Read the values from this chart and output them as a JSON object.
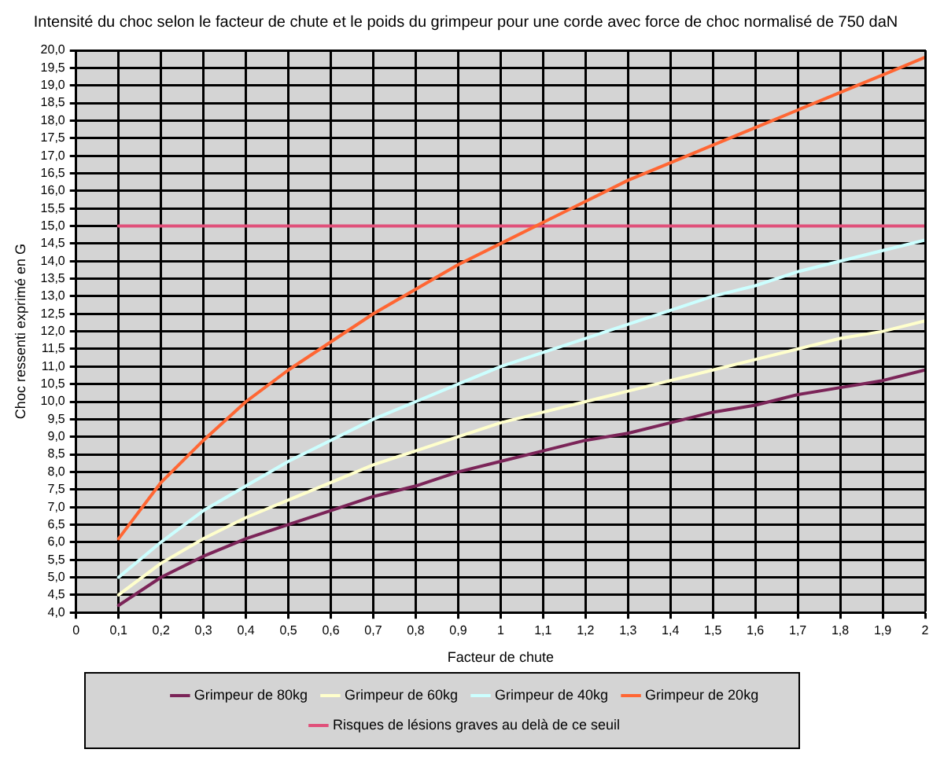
{
  "chart_data": {
    "type": "line",
    "title": "Intensité du choc selon le facteur de chute et le poids du grimpeur pour une corde avec force de choc normalisé de 750 daN",
    "xlabel": "Facteur de chute",
    "ylabel": "Choc ressenti exprimé en G",
    "x": [
      0.1,
      0.2,
      0.3,
      0.4,
      0.5,
      0.6,
      0.7,
      0.8,
      0.9,
      1.0,
      1.1,
      1.2,
      1.3,
      1.4,
      1.5,
      1.6,
      1.7,
      1.8,
      1.9,
      2.0
    ],
    "series": [
      {
        "name": "Grimpeur de 80kg",
        "color": "#7b2458",
        "values": [
          4.2,
          5.0,
          5.6,
          6.1,
          6.5,
          6.9,
          7.3,
          7.6,
          8.0,
          8.3,
          8.6,
          8.9,
          9.1,
          9.4,
          9.7,
          9.9,
          10.2,
          10.4,
          10.6,
          10.9
        ]
      },
      {
        "name": "Grimpeur de 60kg",
        "color": "#ffffcc",
        "values": [
          4.5,
          5.4,
          6.1,
          6.7,
          7.2,
          7.7,
          8.2,
          8.6,
          9.0,
          9.4,
          9.7,
          10.0,
          10.3,
          10.6,
          10.9,
          11.2,
          11.5,
          11.8,
          12.0,
          12.3
        ]
      },
      {
        "name": "Grimpeur de 40kg",
        "color": "#ccffff",
        "values": [
          5.0,
          6.0,
          6.9,
          7.6,
          8.3,
          8.9,
          9.5,
          10.0,
          10.5,
          11.0,
          11.4,
          11.8,
          12.2,
          12.6,
          13.0,
          13.3,
          13.7,
          14.0,
          14.3,
          14.6
        ]
      },
      {
        "name": "Grimpeur de 20kg",
        "color": "#ff6633",
        "values": [
          6.1,
          7.7,
          8.9,
          10.0,
          10.9,
          11.7,
          12.5,
          13.2,
          13.9,
          14.5,
          15.1,
          15.7,
          16.3,
          16.8,
          17.3,
          17.8,
          18.3,
          18.8,
          19.3,
          19.8
        ]
      },
      {
        "name": "Risques de lésions graves au delà de ce seuil",
        "color": "#e0507a",
        "values": [
          15,
          15,
          15,
          15,
          15,
          15,
          15,
          15,
          15,
          15,
          15,
          15,
          15,
          15,
          15,
          15,
          15,
          15,
          15,
          15
        ]
      }
    ],
    "xlim": [
      0,
      2
    ],
    "xticks": [
      0,
      {
        "value": 0.1,
        "label": "0,1"
      },
      {
        "value": 0.2,
        "label": "0,2"
      },
      {
        "value": 0.3,
        "label": "0,3"
      },
      {
        "value": 0.4,
        "label": "0,4"
      },
      {
        "value": 0.5,
        "label": "0,5"
      },
      {
        "value": 0.6,
        "label": "0,6"
      },
      {
        "value": 0.7,
        "label": "0,7"
      },
      {
        "value": 0.8,
        "label": "0,8"
      },
      {
        "value": 0.9,
        "label": "0,9"
      },
      1,
      {
        "value": 1.1,
        "label": "1,1"
      },
      {
        "value": 1.2,
        "label": "1,2"
      },
      {
        "value": 1.3,
        "label": "1,3"
      },
      {
        "value": 1.4,
        "label": "1,4"
      },
      {
        "value": 1.5,
        "label": "1,5"
      },
      {
        "value": 1.6,
        "label": "1,6"
      },
      {
        "value": 1.7,
        "label": "1,7"
      },
      {
        "value": 1.8,
        "label": "1,8"
      },
      {
        "value": 1.9,
        "label": "1,9"
      },
      2
    ],
    "ylim": [
      4,
      20
    ],
    "yticks": [
      {
        "value": 4,
        "label": "4,0"
      },
      {
        "value": 4.5,
        "label": "4,5"
      },
      {
        "value": 5,
        "label": "5,0"
      },
      {
        "value": 5.5,
        "label": "5,5"
      },
      {
        "value": 6,
        "label": "6,0"
      },
      {
        "value": 6.5,
        "label": "6,5"
      },
      {
        "value": 7,
        "label": "7,0"
      },
      {
        "value": 7.5,
        "label": "7,5"
      },
      {
        "value": 8,
        "label": "8,0"
      },
      {
        "value": 8.5,
        "label": "8,5"
      },
      {
        "value": 9,
        "label": "9,0"
      },
      {
        "value": 9.5,
        "label": "9,5"
      },
      {
        "value": 10,
        "label": "10,0"
      },
      {
        "value": 10.5,
        "label": "10,5"
      },
      {
        "value": 11,
        "label": "11,0"
      },
      {
        "value": 11.5,
        "label": "11,5"
      },
      {
        "value": 12,
        "label": "12,0"
      },
      {
        "value": 12.5,
        "label": "12,5"
      },
      {
        "value": 13,
        "label": "13,0"
      },
      {
        "value": 13.5,
        "label": "13,5"
      },
      {
        "value": 14,
        "label": "14,0"
      },
      {
        "value": 14.5,
        "label": "14,5"
      },
      {
        "value": 15,
        "label": "15,0"
      },
      {
        "value": 15.5,
        "label": "15,5"
      },
      {
        "value": 16,
        "label": "16,0"
      },
      {
        "value": 16.5,
        "label": "16,5"
      },
      {
        "value": 17,
        "label": "17,0"
      },
      {
        "value": 17.5,
        "label": "17,5"
      },
      {
        "value": 18,
        "label": "18,0"
      },
      {
        "value": 18.5,
        "label": "18,5"
      },
      {
        "value": 19,
        "label": "19,0"
      },
      {
        "value": 19.5,
        "label": "19,5"
      },
      {
        "value": 20,
        "label": "20,0"
      }
    ],
    "grid": true,
    "legend": "bottom",
    "marker": "none",
    "line_style": "solid"
  }
}
